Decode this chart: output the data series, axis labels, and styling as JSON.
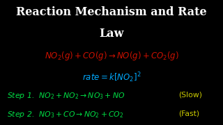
{
  "background_color": "#000000",
  "title_line1": "Reaction Mechanism and Rate",
  "title_line2": "Law",
  "title_color": "#ffffff",
  "title_fontsize": 11.5,
  "equation_color": "#cc1100",
  "rate_color": "#00aaff",
  "step_color": "#00dd44",
  "slow_fast_color": "#cccc00",
  "eq1": "$NO_2(g) + CO(g) \\rightarrow NO(g) + CO_2(g)$",
  "eq2": "$rate = k[NO_2]^2$",
  "step1_full": "Step 1.  $NO_2 + NO_2 \\rightarrow NO_3 + NO$",
  "step1_tag": "(Slow)",
  "step2_full": "Step 2.  $NO_3 + CO \\rightarrow NO_2 + CO_2$",
  "step2_tag": "(Fast)"
}
